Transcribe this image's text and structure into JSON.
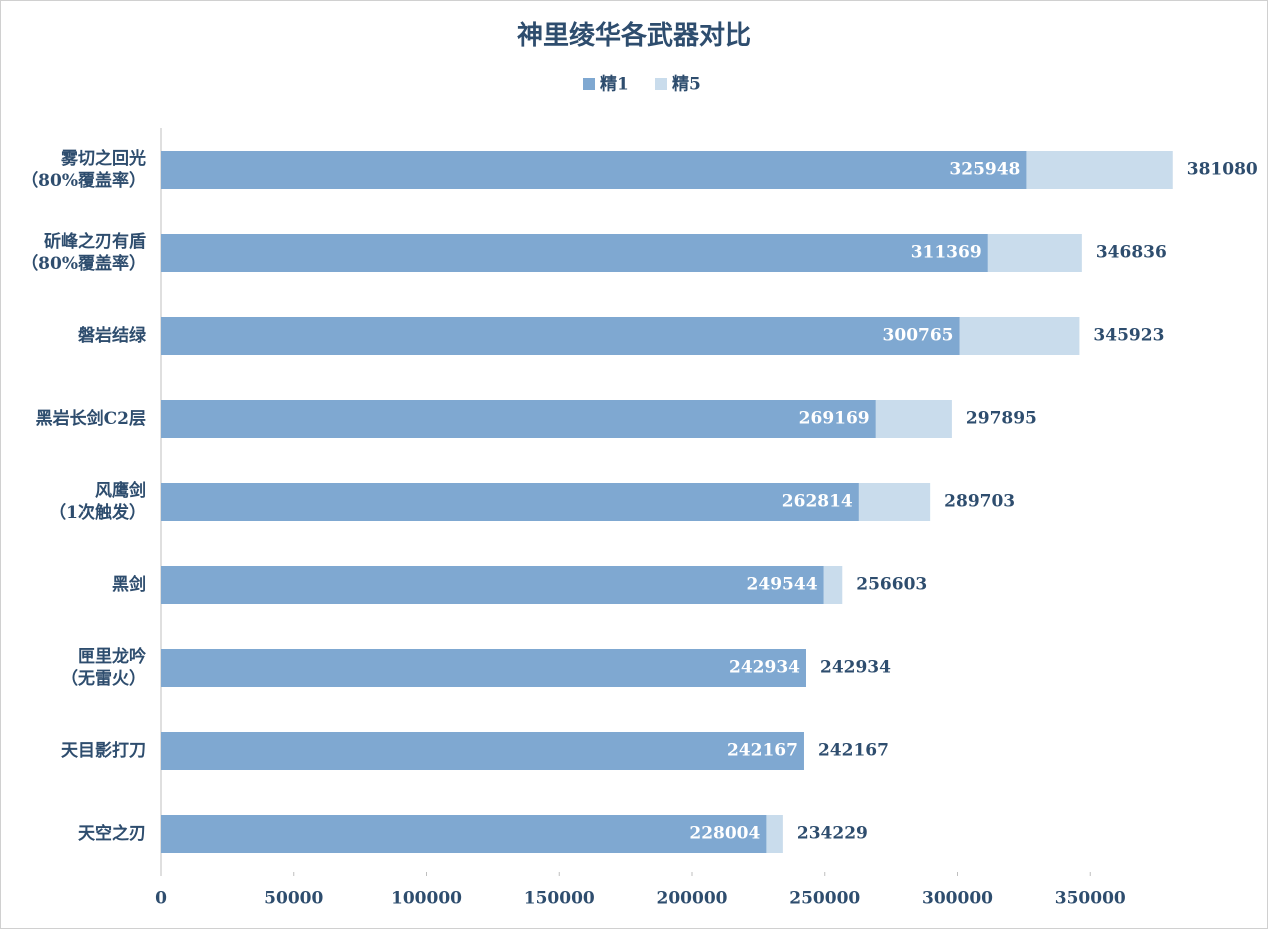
{
  "chart_data": {
    "type": "bar",
    "orientation": "horizontal",
    "overlap": true,
    "title": "神里绫华各武器对比",
    "categories": [
      "雾切之回光\n（80%覆盖率）",
      "斫峰之刃有盾\n（80%覆盖率）",
      "磐岩结绿",
      "黑岩长剑C2层",
      "风鹰剑\n（1次触发）",
      "黑剑",
      "匣里龙吟\n（无雷火）",
      "天目影打刀",
      "天空之刃"
    ],
    "series": [
      {
        "name": "精1",
        "color": "#7fa8d1",
        "values": [
          325948,
          311369,
          300765,
          269169,
          262814,
          249544,
          242934,
          242167,
          228004
        ]
      },
      {
        "name": "精5",
        "color": "#c9dcec",
        "values": [
          381080,
          346836,
          345923,
          297895,
          289703,
          256603,
          242934,
          242167,
          234229
        ]
      }
    ],
    "xlim": [
      0,
      400000
    ],
    "xticks": [
      0,
      50000,
      100000,
      150000,
      200000,
      250000,
      300000,
      350000
    ],
    "legend": "top"
  }
}
